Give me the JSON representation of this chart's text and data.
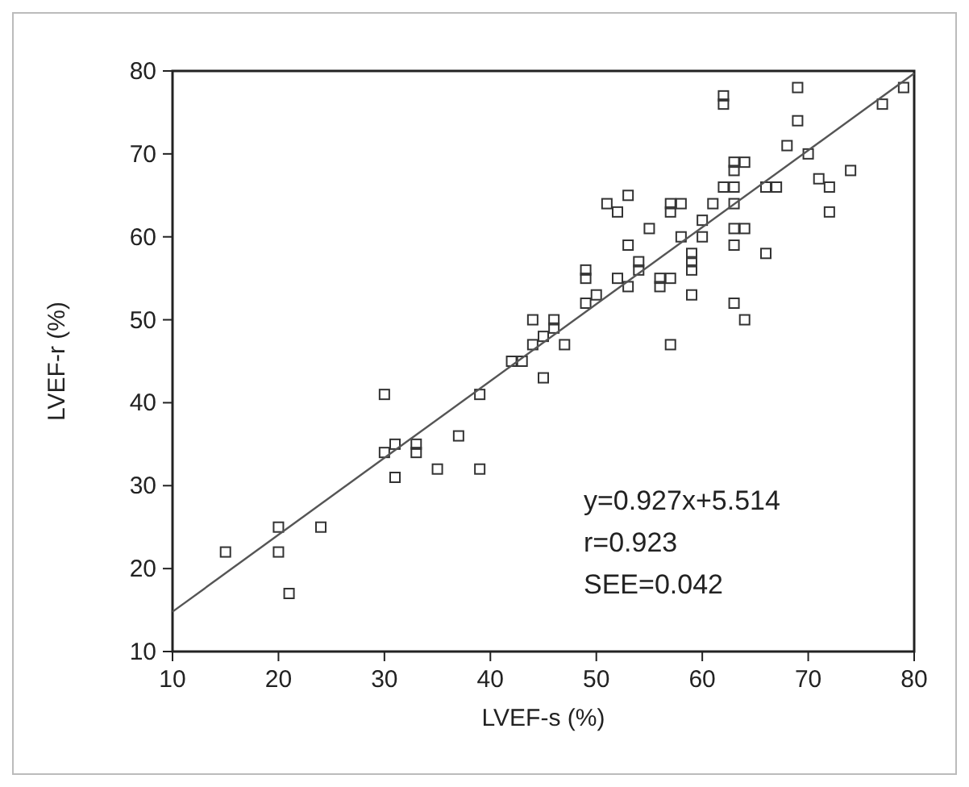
{
  "chart_data": {
    "type": "scatter",
    "xlabel": "LVEF-s  (%)",
    "ylabel": "LVEF-r  (%)",
    "xlim": [
      10,
      80
    ],
    "ylim": [
      10,
      80
    ],
    "xticks": [
      10,
      20,
      30,
      40,
      50,
      60,
      70,
      80
    ],
    "yticks": [
      10,
      20,
      30,
      40,
      50,
      60,
      70,
      80
    ],
    "grid": false,
    "series": [
      {
        "marker": "square",
        "color": "#333333",
        "x": [
          15,
          20,
          20,
          21,
          24,
          30,
          30,
          31,
          31,
          33,
          33,
          35,
          37,
          39,
          39,
          42,
          43,
          44,
          44,
          45,
          45,
          46,
          46,
          47,
          49,
          49,
          49,
          50,
          51,
          52,
          52,
          53,
          53,
          53,
          54,
          54,
          55,
          56,
          56,
          57,
          57,
          57,
          57,
          58,
          58,
          59,
          59,
          59,
          59,
          60,
          60,
          61,
          62,
          62,
          62,
          63,
          63,
          63,
          63,
          63,
          63,
          63,
          64,
          64,
          64,
          66,
          66,
          67,
          68,
          69,
          69,
          70,
          71,
          72,
          72,
          74,
          77,
          79
        ],
        "values": [
          22,
          25,
          22,
          17,
          25,
          41,
          34,
          35,
          31,
          35,
          34,
          32,
          36,
          32,
          41,
          45,
          45,
          50,
          47,
          48,
          43,
          49,
          50,
          47,
          52,
          55,
          56,
          53,
          64,
          63,
          55,
          54,
          59,
          65,
          57,
          56,
          61,
          55,
          54,
          63,
          64,
          55,
          47,
          60,
          64,
          53,
          56,
          57,
          58,
          62,
          60,
          64,
          66,
          76,
          77,
          68,
          69,
          66,
          64,
          61,
          59,
          52,
          69,
          61,
          50,
          66,
          58,
          66,
          71,
          78,
          74,
          70,
          67,
          66,
          63,
          68,
          76,
          78
        ]
      },
      {
        "type": "line",
        "color": "#555555",
        "x": [
          10,
          80
        ],
        "values": [
          14.8,
          79.7
        ]
      }
    ],
    "annotations": [
      "y=0.927x+5.514",
      "r=0.923",
      "SEE=0.042"
    ]
  }
}
